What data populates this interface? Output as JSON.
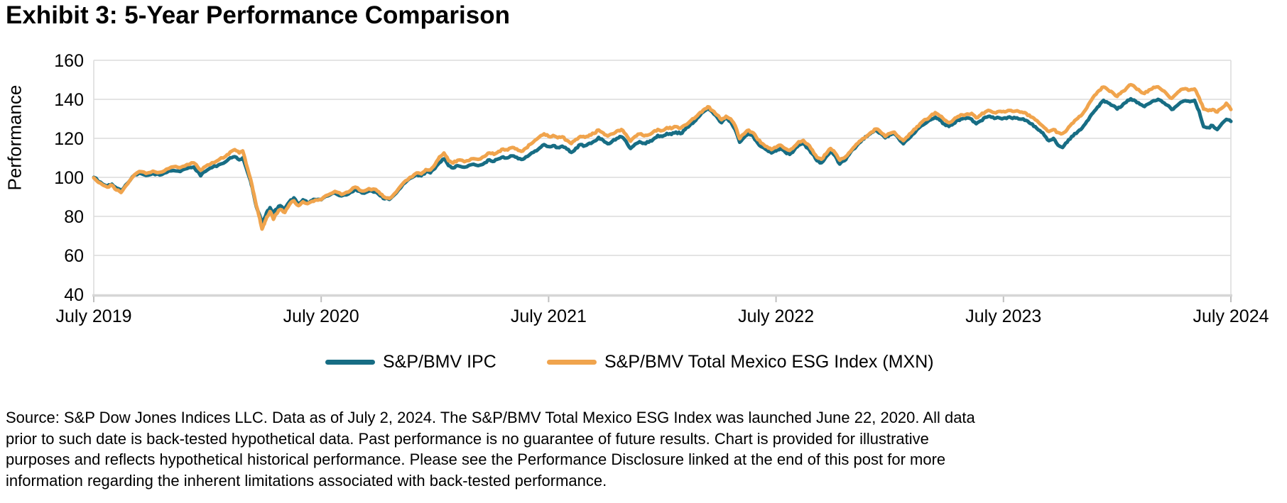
{
  "title": "Exhibit 3: 5-Year Performance Comparison",
  "chart_data": {
    "type": "line",
    "title": "Exhibit 3: 5-Year Performance Comparison",
    "xlabel": "",
    "ylabel": "Performance",
    "ylim": [
      40,
      160
    ],
    "yticks": [
      40,
      60,
      80,
      100,
      120,
      140,
      160
    ],
    "xtick_labels": [
      "July 2019",
      "July 2020",
      "July 2021",
      "July 2022",
      "July 2023",
      "July 2024"
    ],
    "x_domain_years": [
      0,
      5
    ],
    "grid": "horizontal",
    "legend_position": "bottom-center",
    "gridline_color": "#DCDCDC",
    "axis_line_color": "#D6D6D6",
    "x_years": [
      0.0,
      0.03,
      0.06,
      0.08,
      0.1,
      0.12,
      0.14,
      0.17,
      0.2,
      0.23,
      0.26,
      0.29,
      0.32,
      0.35,
      0.38,
      0.41,
      0.44,
      0.47,
      0.49,
      0.52,
      0.55,
      0.58,
      0.6,
      0.62,
      0.64,
      0.655,
      0.67,
      0.69,
      0.7,
      0.715,
      0.73,
      0.74,
      0.75,
      0.76,
      0.775,
      0.79,
      0.8,
      0.82,
      0.84,
      0.86,
      0.88,
      0.9,
      0.92,
      0.94,
      0.96,
      0.98,
      1.0,
      1.03,
      1.06,
      1.09,
      1.12,
      1.15,
      1.18,
      1.21,
      1.24,
      1.26,
      1.28,
      1.3,
      1.33,
      1.36,
      1.39,
      1.42,
      1.44,
      1.46,
      1.48,
      1.5,
      1.52,
      1.54,
      1.56,
      1.58,
      1.6,
      1.63,
      1.66,
      1.69,
      1.72,
      1.74,
      1.76,
      1.78,
      1.8,
      1.82,
      1.84,
      1.86,
      1.88,
      1.9,
      1.92,
      1.94,
      1.96,
      1.98,
      2.0,
      2.02,
      2.04,
      2.06,
      2.08,
      2.1,
      2.12,
      2.14,
      2.16,
      2.18,
      2.2,
      2.22,
      2.24,
      2.26,
      2.28,
      2.3,
      2.32,
      2.34,
      2.36,
      2.38,
      2.4,
      2.42,
      2.44,
      2.46,
      2.48,
      2.5,
      2.52,
      2.54,
      2.56,
      2.58,
      2.6,
      2.62,
      2.64,
      2.66,
      2.68,
      2.7,
      2.72,
      2.74,
      2.76,
      2.78,
      2.8,
      2.82,
      2.84,
      2.86,
      2.88,
      2.9,
      2.92,
      2.94,
      2.96,
      2.98,
      3.0,
      3.02,
      3.04,
      3.06,
      3.08,
      3.1,
      3.12,
      3.14,
      3.16,
      3.18,
      3.2,
      3.22,
      3.24,
      3.26,
      3.28,
      3.3,
      3.32,
      3.34,
      3.36,
      3.38,
      3.4,
      3.42,
      3.44,
      3.46,
      3.48,
      3.5,
      3.52,
      3.54,
      3.56,
      3.58,
      3.6,
      3.62,
      3.64,
      3.66,
      3.68,
      3.7,
      3.72,
      3.74,
      3.76,
      3.78,
      3.8,
      3.82,
      3.84,
      3.86,
      3.88,
      3.9,
      3.92,
      3.94,
      3.96,
      3.98,
      4.0,
      4.02,
      4.04,
      4.06,
      4.08,
      4.1,
      4.12,
      4.14,
      4.16,
      4.18,
      4.2,
      4.22,
      4.24,
      4.26,
      4.28,
      4.3,
      4.32,
      4.34,
      4.36,
      4.38,
      4.4,
      4.42,
      4.44,
      4.46,
      4.48,
      4.5,
      4.52,
      4.54,
      4.56,
      4.58,
      4.6,
      4.62,
      4.64,
      4.66,
      4.68,
      4.7,
      4.72,
      4.74,
      4.76,
      4.78,
      4.8,
      4.82,
      4.84,
      4.86,
      4.88,
      4.9,
      4.92,
      4.94,
      4.96,
      4.98,
      5.0
    ],
    "series": [
      {
        "name": "S&P/BMV IPC",
        "color": "#176D84",
        "values": [
          100,
          97.5,
          95.5,
          96.5,
          94.5,
          93.2,
          96,
          100.3,
          102.3,
          101,
          102,
          101.2,
          102.5,
          103.5,
          103,
          104.5,
          105.3,
          100.8,
          103,
          105,
          106.5,
          108,
          110,
          110.6,
          109,
          110,
          105,
          98,
          93,
          85,
          80.5,
          76.3,
          79,
          82,
          84.5,
          81.5,
          83.5,
          85.5,
          84,
          87.5,
          89.5,
          86.5,
          88.5,
          87,
          88.2,
          88.6,
          88.5,
          90.5,
          92,
          90.5,
          91.5,
          94,
          92,
          93,
          92.5,
          90.5,
          89,
          88.7,
          92,
          96.5,
          99.5,
          101.5,
          100.8,
          102.8,
          102.3,
          104.5,
          107.5,
          109.5,
          106,
          104.8,
          106,
          105.2,
          106.5,
          106,
          107.5,
          109,
          108.2,
          109.5,
          110.5,
          110,
          111,
          110.3,
          109.2,
          110.5,
          112,
          113.5,
          115,
          116.8,
          115.8,
          116.3,
          115.3,
          116,
          114.5,
          112.8,
          115,
          116.8,
          116.2,
          117.5,
          118.5,
          120.5,
          119,
          117.2,
          118.5,
          120,
          120.8,
          118.5,
          114.8,
          117,
          118.3,
          117.5,
          118,
          119.5,
          121.5,
          121,
          122.5,
          122,
          123.2,
          122.4,
          124.5,
          126.5,
          128.5,
          131,
          133.5,
          135.4,
          133.5,
          131,
          128,
          130.2,
          128.5,
          124.5,
          118,
          120.5,
          122.5,
          121,
          117.5,
          115.5,
          114,
          112.5,
          113.5,
          114.8,
          113,
          111.8,
          114,
          116.5,
          117.2,
          115,
          112,
          108.5,
          107.5,
          110.5,
          113.5,
          111,
          106.8,
          108.5,
          111.5,
          114.5,
          117,
          119.5,
          121,
          123,
          124.2,
          122.5,
          120.3,
          121.8,
          122.3,
          119.8,
          117.2,
          119.5,
          122,
          124.5,
          126.5,
          127.9,
          129.5,
          130.9,
          129.3,
          127.3,
          126.1,
          127.5,
          129.3,
          130,
          130.5,
          129.8,
          127.5,
          129,
          130.8,
          131.3,
          130.2,
          130.6,
          130.3,
          130.8,
          130.2,
          130.5,
          129.8,
          129.2,
          127.5,
          126,
          124,
          121.5,
          118.8,
          120,
          116.5,
          115.3,
          118,
          121,
          122.5,
          124.5,
          127.5,
          131,
          134,
          136.5,
          139.5,
          138.2,
          136.8,
          135,
          136.5,
          138.5,
          140.3,
          139.2,
          137.5,
          136.3,
          137.8,
          139.3,
          140,
          138.5,
          137,
          134.8,
          136.5,
          138.5,
          139.3,
          138.8,
          139.5,
          134,
          126,
          125.5,
          126.5,
          124.5,
          127.5,
          129.7,
          128.7
        ]
      },
      {
        "name": "S&P/BMV Total Mexico ESG Index (MXN)",
        "color": "#F0A44D",
        "values": [
          99.8,
          97,
          95,
          96,
          93.5,
          92.2,
          95.5,
          100,
          103,
          102,
          103.2,
          102.6,
          104.2,
          105.4,
          105,
          106.6,
          107.4,
          103.6,
          105.5,
          107.5,
          109,
          110.8,
          113,
          114.2,
          112.5,
          113.6,
          107,
          99,
          93.5,
          85.5,
          79,
          73.5,
          76,
          79.5,
          82.5,
          78.5,
          81,
          83.5,
          82,
          86,
          88,
          85.5,
          87.5,
          86.5,
          87.7,
          88.4,
          88.6,
          91,
          92.8,
          91.2,
          92.5,
          95,
          93,
          94.2,
          93.8,
          91.5,
          89.8,
          89.2,
          92.5,
          97,
          100,
          102.3,
          101.8,
          104,
          103.8,
          106.5,
          110.5,
          112.5,
          108.5,
          107.3,
          108.8,
          108,
          109.5,
          109.2,
          110.8,
          112.5,
          111.8,
          113.3,
          114.5,
          114,
          115.3,
          114.6,
          113.3,
          115,
          117,
          119,
          120.8,
          122.3,
          121,
          121.5,
          120.3,
          120.8,
          119,
          117.3,
          119.5,
          121,
          120.5,
          121.8,
          122.5,
          124.3,
          122.8,
          121.2,
          122.3,
          123.8,
          124.5,
          122,
          118.5,
          121,
          122.2,
          121.3,
          121.8,
          123.3,
          124.6,
          124,
          125.5,
          125,
          126,
          125.2,
          126.8,
          128.5,
          130.2,
          132.5,
          134.5,
          136.2,
          134.3,
          132,
          129.5,
          131.3,
          130,
          126.5,
          119.8,
          122.3,
          124.2,
          122.8,
          119.3,
          117.3,
          115.8,
          114.2,
          115.3,
          116.5,
          114.8,
          113.8,
          115.8,
          118.3,
          119,
          117,
          114,
          110.3,
          109.3,
          112,
          114.8,
          112.5,
          108.8,
          110,
          112.5,
          115.2,
          117.5,
          119.8,
          121.3,
          123.2,
          124.8,
          123.2,
          121,
          122.5,
          123.2,
          120.8,
          118.8,
          121,
          123.5,
          126,
          128.2,
          129.7,
          131.5,
          133.2,
          131.5,
          129.5,
          128,
          129.5,
          131.2,
          132,
          132.5,
          132.8,
          130.5,
          132,
          133.5,
          134.2,
          133.2,
          133.8,
          133.8,
          134.3,
          133.8,
          134.2,
          133.5,
          132.8,
          131,
          129.5,
          127.5,
          125.5,
          123.5,
          124.5,
          123,
          122.5,
          124.5,
          127.5,
          129.7,
          131.5,
          134.5,
          138.5,
          142,
          144.5,
          146.3,
          144.8,
          143.5,
          141.5,
          143.8,
          145.5,
          147.5,
          146,
          144.3,
          143,
          144.8,
          146.2,
          146.4,
          144.5,
          142.5,
          140.5,
          142.8,
          145,
          145.5,
          144.8,
          145.3,
          141,
          135,
          134.2,
          134.8,
          133.5,
          135.5,
          138,
          134.8
        ]
      }
    ]
  },
  "source_note": {
    "lines": [
      "Source: S&P Dow Jones Indices LLC. Data as of July 2, 2024. The S&P/BMV Total Mexico ESG Index was launched June 22, 2020. All data",
      "prior to such date is back-tested hypothetical data. Past performance is no guarantee of future results. Chart is provided for illustrative",
      "purposes and reflects hypothetical historical performance. Please see the Performance Disclosure linked at the end of this post for more",
      "information regarding the inherent limitations associated with back-tested performance."
    ]
  }
}
